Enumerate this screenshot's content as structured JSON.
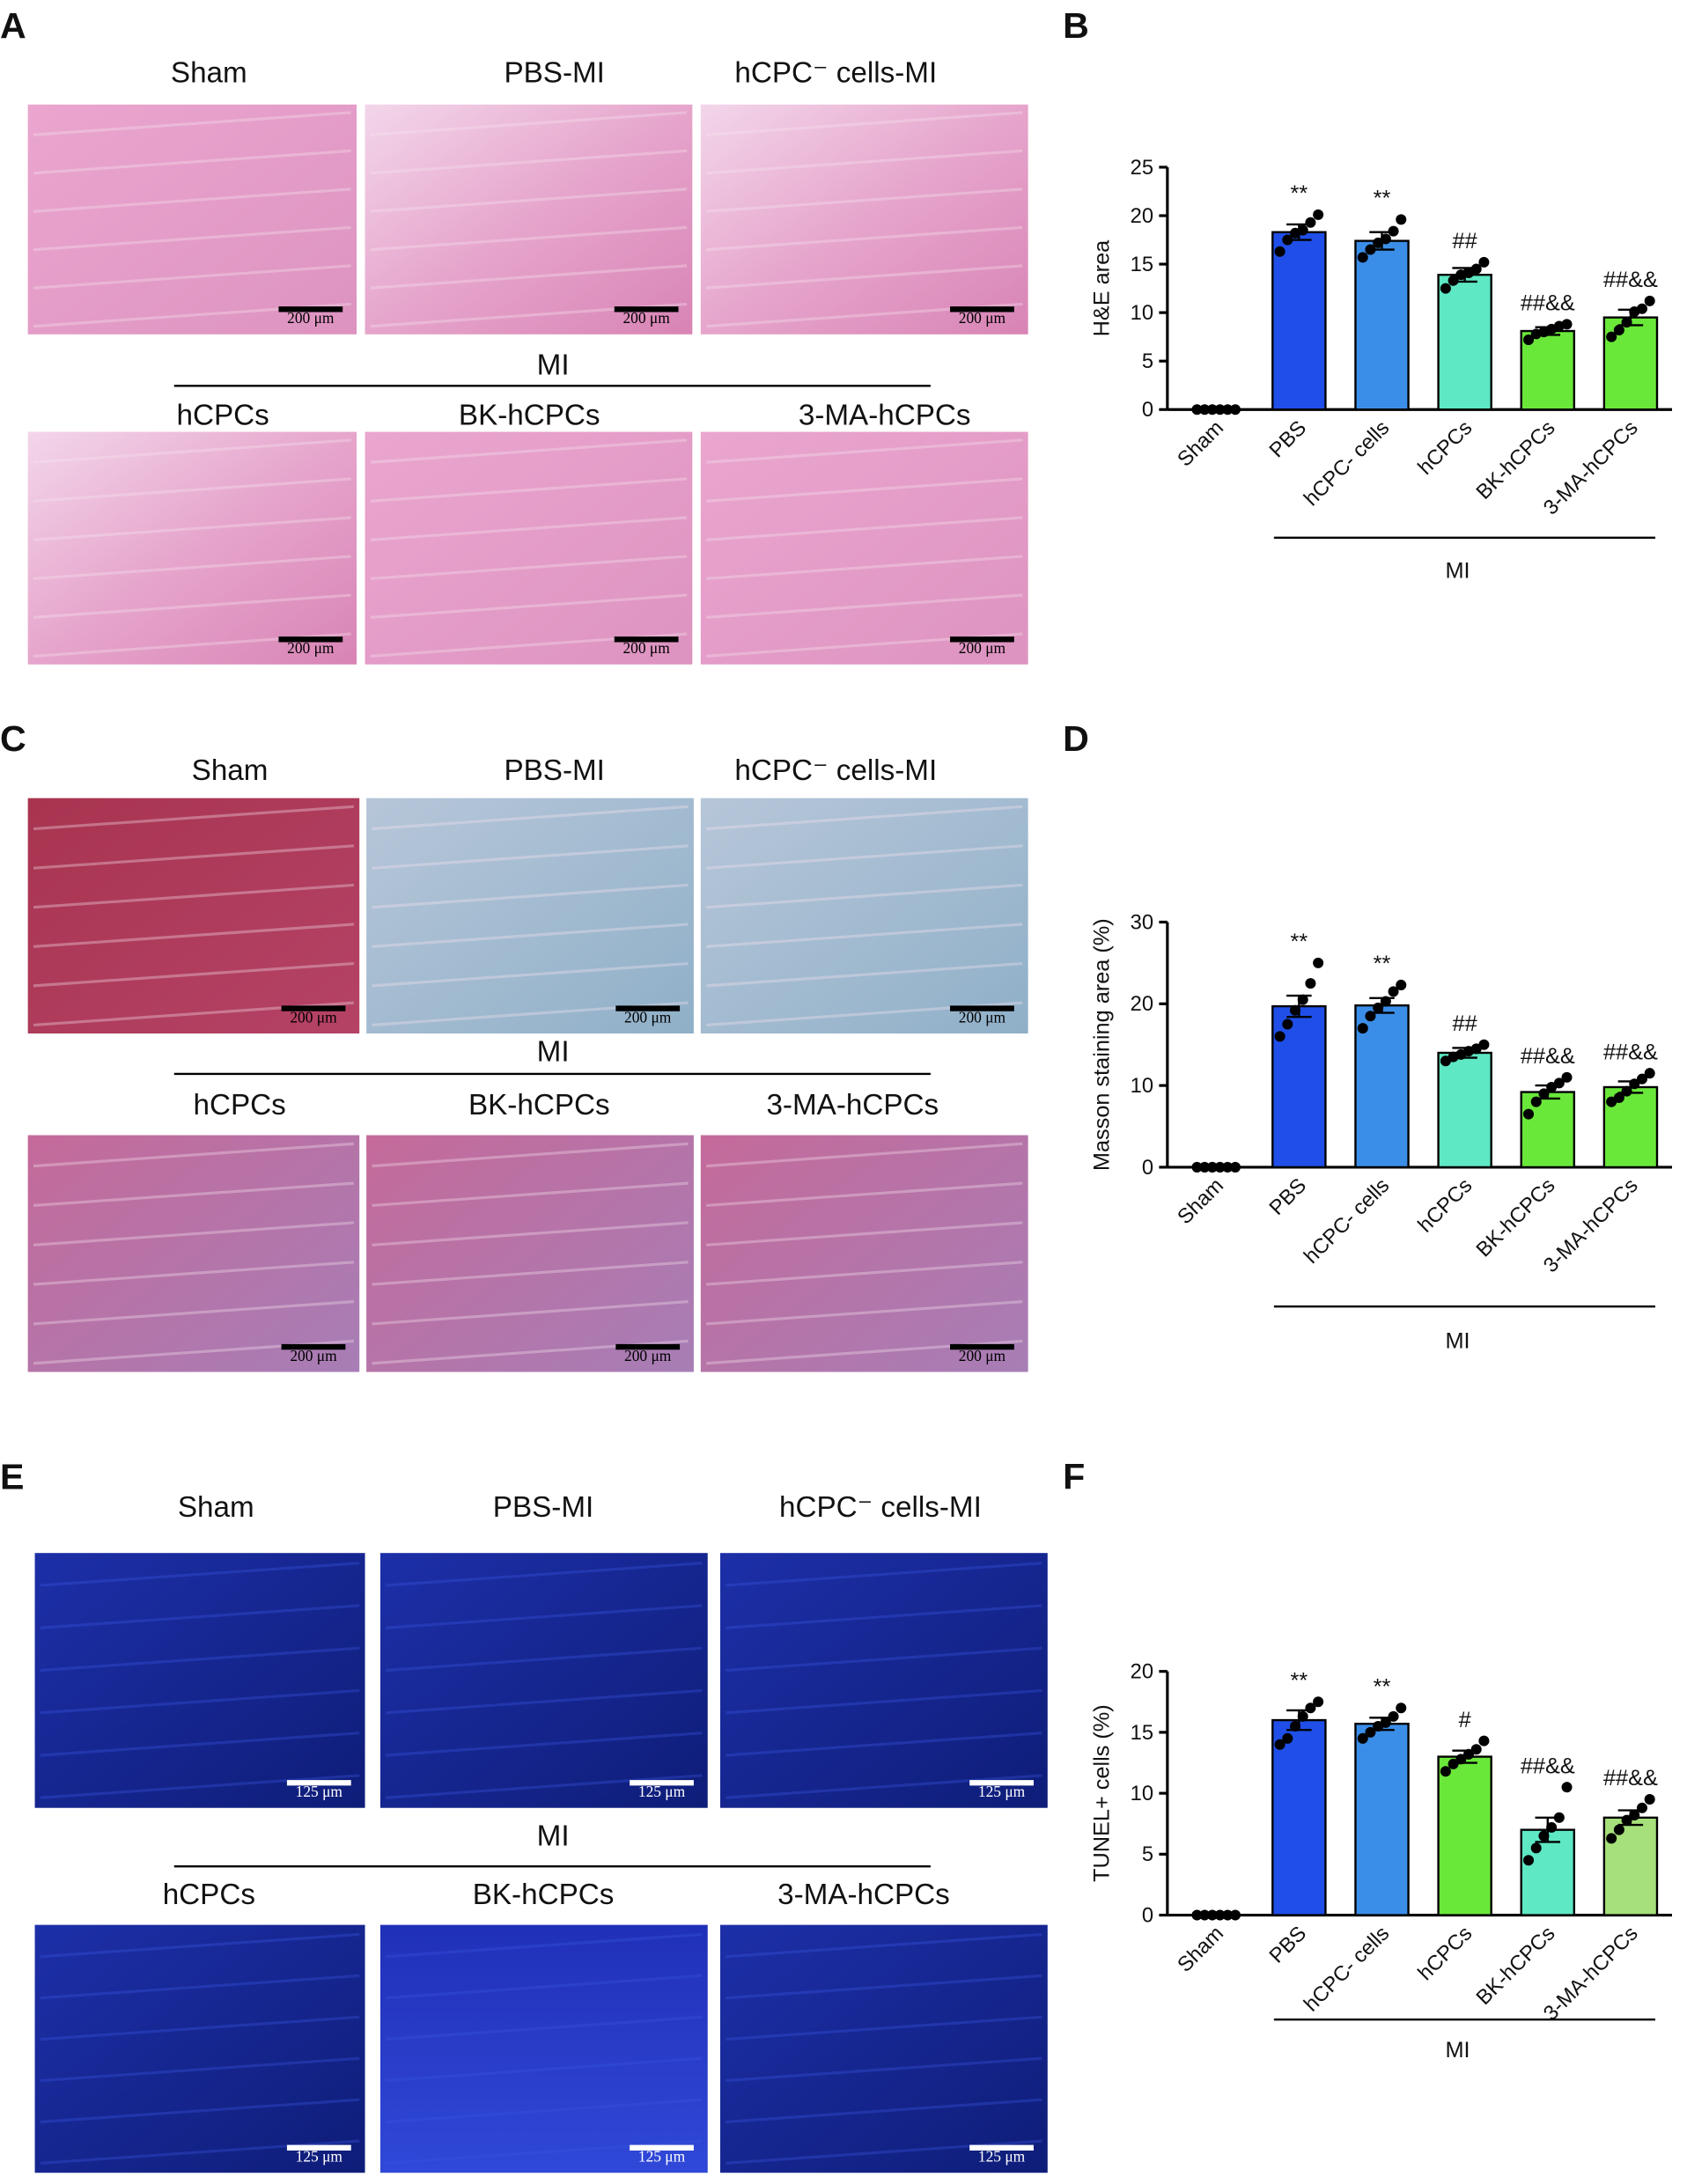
{
  "images": [
    {
      "panel": "A",
      "row1": [
        "Sham",
        "PBS-MI",
        "hCPC⁻ cells-MI"
      ],
      "group": "MI",
      "row2": [
        "hCPCs",
        "BK-hCPCs",
        "3-MA-hCPCs"
      ],
      "scale_bar": "200 μm"
    },
    {
      "panel": "C",
      "row1": [
        "Sham",
        "PBS-MI",
        "hCPC⁻ cells-MI"
      ],
      "group": "MI",
      "row2": [
        "hCPCs",
        "BK-hCPCs",
        "3-MA-hCPCs"
      ],
      "scale_bar": "200 μm"
    },
    {
      "panel": "E",
      "row1": [
        "Sham",
        "PBS-MI",
        "hCPC⁻ cells-MI"
      ],
      "group": "MI",
      "row2": [
        "hCPCs",
        "BK-hCPCs",
        "3-MA-hCPCs"
      ],
      "scale_bar": "125 μm"
    }
  ],
  "chart_data": [
    {
      "type": "bar",
      "panel": "B",
      "ylabel": "H&E area",
      "categories": [
        "Sham",
        "PBS",
        "hCPC- cells",
        "hCPCs",
        "BK-hCPCs",
        "3-MA-hCPCs"
      ],
      "values": [
        0,
        18.3,
        17.4,
        13.9,
        8.1,
        9.5
      ],
      "errors": [
        0,
        0.8,
        0.9,
        0.7,
        0.4,
        0.8
      ],
      "points": [
        [
          0,
          0,
          0,
          0,
          0,
          0
        ],
        [
          16.3,
          17.5,
          18.2,
          18.5,
          19.3,
          20.1
        ],
        [
          15.7,
          16.5,
          17.2,
          17.6,
          18.4,
          19.6
        ],
        [
          12.5,
          13.3,
          13.9,
          14.1,
          14.5,
          15.2
        ],
        [
          7.2,
          7.8,
          8.0,
          8.3,
          8.6,
          8.8
        ],
        [
          7.5,
          8.2,
          9.0,
          10.1,
          10.4,
          11.2
        ]
      ],
      "colors": [
        null,
        "#1f4fe8",
        "#3b8ee8",
        "#5ee8c4",
        "#6ae83a",
        "#6ae83a"
      ],
      "annotations": [
        null,
        "**",
        "**",
        "##",
        "##&&",
        "##&&"
      ],
      "group_label": "MI",
      "ylim": [
        0,
        25
      ],
      "yticks": [
        0,
        5,
        10,
        15,
        20,
        25
      ]
    },
    {
      "type": "bar",
      "panel": "D",
      "ylabel": "Masson staining area (%)",
      "categories": [
        "Sham",
        "PBS",
        "hCPC- cells",
        "hCPCs",
        "BK-hCPCs",
        "3-MA-hCPCs"
      ],
      "values": [
        0,
        19.7,
        19.8,
        14.0,
        9.2,
        9.8
      ],
      "errors": [
        0,
        1.3,
        0.9,
        0.6,
        0.8,
        0.7
      ],
      "points": [
        [
          0,
          0,
          0,
          0,
          0,
          0
        ],
        [
          16.0,
          17.5,
          19.2,
          20.5,
          22.5,
          25.0
        ],
        [
          17.0,
          18.5,
          19.5,
          20.3,
          21.5,
          22.3
        ],
        [
          13.0,
          13.5,
          13.8,
          14.2,
          14.5,
          15.0
        ],
        [
          6.5,
          8.0,
          9.0,
          9.8,
          10.3,
          11.0
        ],
        [
          8.0,
          8.5,
          9.3,
          10.2,
          10.8,
          11.5
        ]
      ],
      "colors": [
        null,
        "#1f4fe8",
        "#3b8ee8",
        "#5ee8c4",
        "#6ae83a",
        "#6ae83a"
      ],
      "annotations": [
        null,
        "**",
        "**",
        "##",
        "##&&",
        "##&&"
      ],
      "group_label": "MI",
      "ylim": [
        0,
        30
      ],
      "yticks": [
        0,
        10,
        20,
        30
      ]
    },
    {
      "type": "bar",
      "panel": "F",
      "ylabel": "TUNEL+ cells (%)",
      "categories": [
        "Sham",
        "PBS",
        "hCPC- cells",
        "hCPCs",
        "BK-hCPCs",
        "3-MA-hCPCs"
      ],
      "values": [
        0,
        16.0,
        15.7,
        13.0,
        7.0,
        8.0
      ],
      "errors": [
        0,
        0.8,
        0.5,
        0.5,
        1.0,
        0.6
      ],
      "points": [
        [
          0,
          0,
          0,
          0,
          0,
          0
        ],
        [
          14.0,
          14.5,
          15.5,
          16.3,
          17.0,
          17.5
        ],
        [
          14.5,
          15.0,
          15.5,
          15.8,
          16.3,
          17.0
        ],
        [
          11.8,
          12.4,
          12.8,
          13.2,
          13.6,
          14.3
        ],
        [
          4.5,
          5.5,
          6.5,
          7.2,
          8.0,
          10.5
        ],
        [
          6.3,
          7.0,
          7.8,
          8.2,
          8.8,
          9.5
        ]
      ],
      "colors": [
        null,
        "#1f4fe8",
        "#3b8ee8",
        "#6ae83a",
        "#5ee8c4",
        "#a6e07a"
      ],
      "annotations": [
        null,
        "**",
        "**",
        "#",
        "##&&",
        "##&&"
      ],
      "group_label": "MI",
      "ylim": [
        0,
        20
      ],
      "yticks": [
        0,
        5,
        10,
        15,
        20
      ]
    }
  ]
}
